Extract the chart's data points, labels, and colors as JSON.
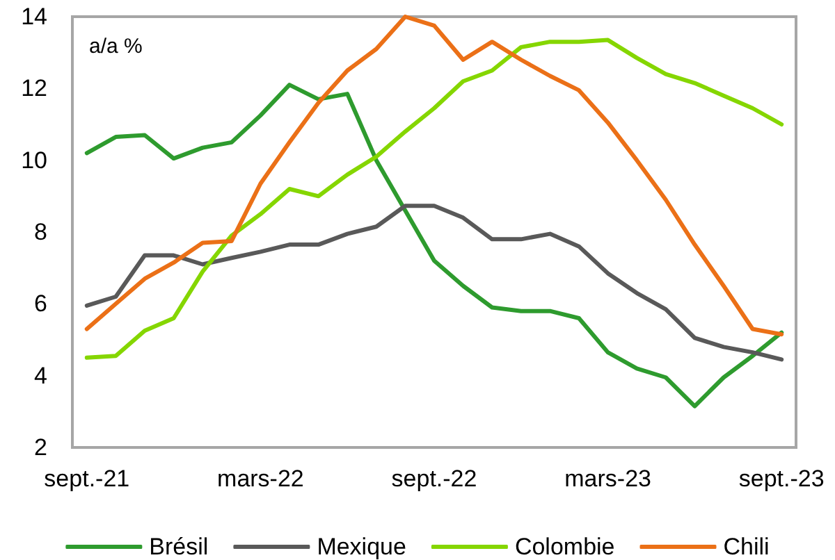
{
  "chart_data": {
    "type": "line",
    "ylabel": "a/a %",
    "categories": [
      "sept.-21",
      null,
      null,
      null,
      null,
      null,
      "mars-22",
      null,
      null,
      null,
      null,
      null,
      "sept.-22",
      null,
      null,
      null,
      null,
      null,
      "mars-23",
      null,
      null,
      null,
      null,
      null,
      "sept.-23"
    ],
    "series": [
      {
        "name": "Brésil",
        "color": "#2e9b2e",
        "values": [
          10.2,
          10.65,
          10.7,
          10.05,
          10.35,
          10.5,
          11.25,
          12.1,
          11.7,
          11.85,
          10.0,
          8.6,
          7.2,
          6.5,
          5.9,
          5.8,
          5.8,
          5.6,
          4.65,
          4.2,
          3.95,
          3.15,
          3.95,
          4.55,
          5.2
        ]
      },
      {
        "name": "Mexique",
        "color": "#595959",
        "values": [
          5.95,
          6.2,
          7.35,
          7.35,
          7.1,
          7.28,
          7.45,
          7.65,
          7.65,
          7.95,
          8.15,
          8.73,
          8.73,
          8.4,
          7.8,
          7.8,
          7.95,
          7.6,
          6.85,
          6.3,
          5.85,
          5.05,
          4.8,
          4.65,
          4.45
        ]
      },
      {
        "name": "Colombie",
        "color": "#85d600",
        "values": [
          4.5,
          4.55,
          5.25,
          5.6,
          6.9,
          7.9,
          8.5,
          9.2,
          9.0,
          9.6,
          10.1,
          10.8,
          11.45,
          12.2,
          12.5,
          13.15,
          13.3,
          13.3,
          13.35,
          12.85,
          12.4,
          12.15,
          11.8,
          11.45,
          11.0
        ]
      },
      {
        "name": "Chili",
        "color": "#eb7017",
        "values": [
          5.3,
          6.0,
          6.7,
          7.15,
          7.7,
          7.75,
          9.35,
          10.5,
          11.6,
          12.5,
          13.1,
          14.0,
          13.75,
          12.8,
          13.3,
          12.8,
          12.35,
          11.95,
          11.05,
          10.0,
          8.9,
          7.65,
          6.5,
          5.3,
          5.15
        ]
      }
    ],
    "ylim": [
      2,
      14
    ],
    "yticks": [
      2,
      4,
      6,
      8,
      10,
      12,
      14
    ],
    "grid": false,
    "legend": "bottom",
    "marker": "none",
    "line_style": "solid"
  }
}
